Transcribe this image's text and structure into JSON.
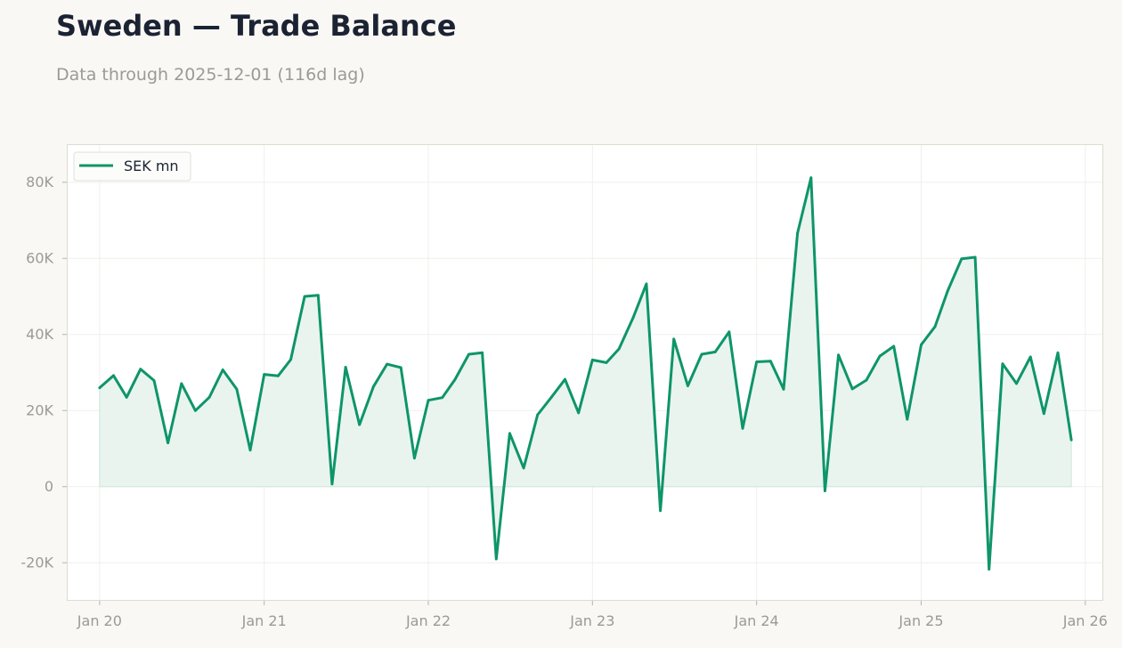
{
  "header": {
    "title": "Sweden — Trade Balance",
    "subtitle": "Data through 2025-12-01 (116d lag)"
  },
  "colors": {
    "line": "#0e956a",
    "fill": "#e9f4ef",
    "plot_bg": "#ffffff",
    "frame": "#dcdcd2",
    "grid": "#efefec",
    "page_bg": "#f9f8f5"
  },
  "chart_data": {
    "type": "area",
    "title": "",
    "xlabel": "",
    "ylabel": "",
    "grid": true,
    "legend_position": "top-left",
    "ylim": [
      -30000,
      90000
    ],
    "xlim": [
      "2019-10-20",
      "2026-02-10"
    ],
    "y_ticks": [
      {
        "value": -20000,
        "label": "-20K"
      },
      {
        "value": 0,
        "label": "0"
      },
      {
        "value": 20000,
        "label": "20K"
      },
      {
        "value": 40000,
        "label": "40K"
      },
      {
        "value": 60000,
        "label": "60K"
      },
      {
        "value": 80000,
        "label": "80K"
      }
    ],
    "x_ticks": [
      {
        "value": "2020-01-01",
        "label": "Jan 20"
      },
      {
        "value": "2021-01-01",
        "label": "Jan 21"
      },
      {
        "value": "2022-01-01",
        "label": "Jan 22"
      },
      {
        "value": "2023-01-01",
        "label": "Jan 23"
      },
      {
        "value": "2024-01-01",
        "label": "Jan 24"
      },
      {
        "value": "2025-01-01",
        "label": "Jan 25"
      },
      {
        "value": "2026-01-01",
        "label": "Jan 26"
      }
    ],
    "series": [
      {
        "name": "SEK mn",
        "x": [
          "2020-01-01",
          "2020-02-01",
          "2020-03-01",
          "2020-04-01",
          "2020-05-01",
          "2020-06-01",
          "2020-07-01",
          "2020-08-01",
          "2020-09-01",
          "2020-10-01",
          "2020-11-01",
          "2020-12-01",
          "2021-01-01",
          "2021-02-01",
          "2021-03-01",
          "2021-04-01",
          "2021-05-01",
          "2021-06-01",
          "2021-07-01",
          "2021-08-01",
          "2021-09-01",
          "2021-10-01",
          "2021-11-01",
          "2021-12-01",
          "2022-01-01",
          "2022-02-01",
          "2022-03-01",
          "2022-04-01",
          "2022-05-01",
          "2022-06-01",
          "2022-07-01",
          "2022-08-01",
          "2022-09-01",
          "2022-10-01",
          "2022-11-01",
          "2022-12-01",
          "2023-01-01",
          "2023-02-01",
          "2023-03-01",
          "2023-04-01",
          "2023-05-01",
          "2023-06-01",
          "2023-07-01",
          "2023-08-01",
          "2023-09-01",
          "2023-10-01",
          "2023-11-01",
          "2023-12-01",
          "2024-01-01",
          "2024-02-01",
          "2024-03-01",
          "2024-04-01",
          "2024-05-01",
          "2024-06-01",
          "2024-07-01",
          "2024-08-01",
          "2024-09-01",
          "2024-10-01",
          "2024-11-01",
          "2024-12-01",
          "2025-01-01",
          "2025-02-01",
          "2025-03-01",
          "2025-04-01",
          "2025-05-01",
          "2025-06-01",
          "2025-07-01",
          "2025-08-01",
          "2025-09-01",
          "2025-10-01",
          "2025-11-01",
          "2025-12-01"
        ],
        "values": [
          26000,
          29200,
          23500,
          30900,
          27900,
          11500,
          27100,
          20000,
          23500,
          30700,
          25600,
          9600,
          29500,
          29100,
          33400,
          50000,
          50300,
          700,
          31400,
          16300,
          26300,
          32200,
          31300,
          7500,
          22700,
          23400,
          28100,
          34800,
          35200,
          -19000,
          14000,
          4900,
          18900,
          23400,
          28200,
          19400,
          33300,
          32600,
          36200,
          44300,
          53300,
          -6300,
          38800,
          26500,
          34800,
          35400,
          40700,
          15300,
          32800,
          33000,
          25600,
          66600,
          81200,
          -1100,
          34600,
          25700,
          28000,
          34300,
          36900,
          17700,
          37300,
          42100,
          51500,
          59900,
          60300,
          -21700,
          32300,
          27100,
          34100,
          19200,
          35200,
          12300
        ]
      }
    ]
  }
}
